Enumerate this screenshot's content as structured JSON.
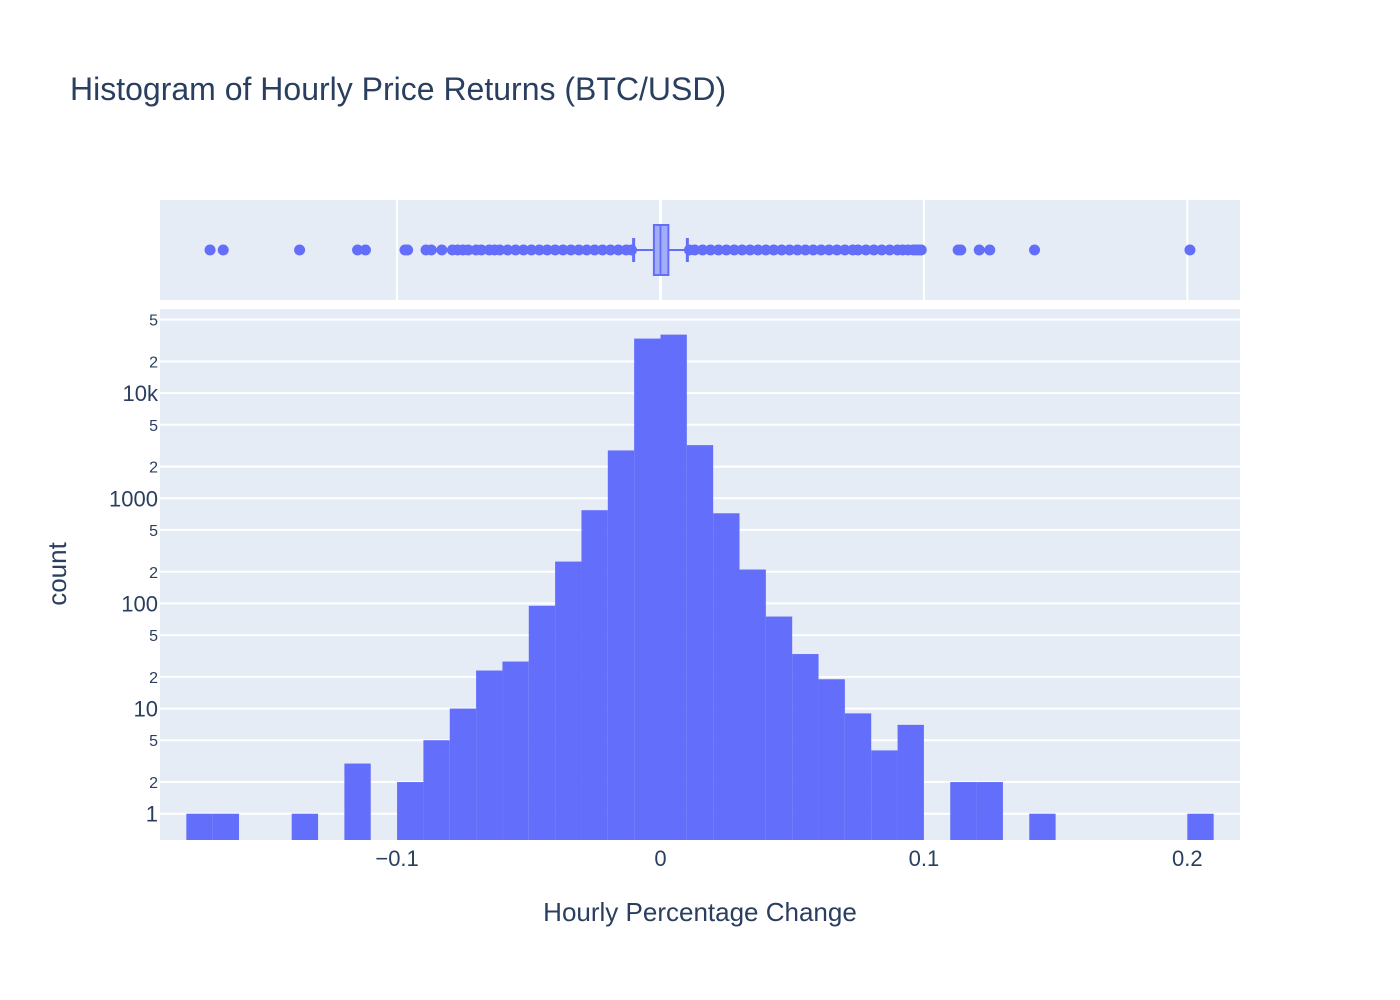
{
  "chart_data": {
    "type": "bar",
    "title": "Histogram of Hourly Price Returns (BTC/USD)",
    "xlabel": "Hourly Percentage Change",
    "ylabel": "count",
    "yscale": "log",
    "xlim": [
      -0.19,
      0.22
    ],
    "ylim_log10": [
      -0.25,
      4.8
    ],
    "bin_width": 0.01,
    "bins": [
      {
        "x0": -0.18,
        "count": 1
      },
      {
        "x0": -0.17,
        "count": 1
      },
      {
        "x0": -0.14,
        "count": 1
      },
      {
        "x0": -0.12,
        "count": 3
      },
      {
        "x0": -0.1,
        "count": 2
      },
      {
        "x0": -0.09,
        "count": 5
      },
      {
        "x0": -0.08,
        "count": 10
      },
      {
        "x0": -0.07,
        "count": 23
      },
      {
        "x0": -0.06,
        "count": 28
      },
      {
        "x0": -0.05,
        "count": 95
      },
      {
        "x0": -0.04,
        "count": 250
      },
      {
        "x0": -0.03,
        "count": 770
      },
      {
        "x0": -0.02,
        "count": 2850
      },
      {
        "x0": -0.01,
        "count": 33000
      },
      {
        "x0": 0.0,
        "count": 36000
      },
      {
        "x0": 0.01,
        "count": 3200
      },
      {
        "x0": 0.02,
        "count": 720
      },
      {
        "x0": 0.03,
        "count": 210
      },
      {
        "x0": 0.04,
        "count": 75
      },
      {
        "x0": 0.05,
        "count": 33
      },
      {
        "x0": 0.06,
        "count": 19
      },
      {
        "x0": 0.07,
        "count": 9
      },
      {
        "x0": 0.08,
        "count": 4
      },
      {
        "x0": 0.09,
        "count": 7
      },
      {
        "x0": 0.11,
        "count": 2
      },
      {
        "x0": 0.12,
        "count": 2
      },
      {
        "x0": 0.14,
        "count": 1
      },
      {
        "x0": 0.2,
        "count": 1
      }
    ],
    "x_ticks": [
      {
        "value": -0.1,
        "label": "−0.1"
      },
      {
        "value": 0,
        "label": "0"
      },
      {
        "value": 0.1,
        "label": "0.1"
      },
      {
        "value": 0.2,
        "label": "0.2"
      }
    ],
    "y_major_ticks": [
      {
        "value": 1,
        "label": "1"
      },
      {
        "value": 10,
        "label": "10"
      },
      {
        "value": 100,
        "label": "100"
      },
      {
        "value": 1000,
        "label": "1000"
      },
      {
        "value": 10000,
        "label": "10k"
      }
    ],
    "y_minor_ticks": [
      {
        "value": 2,
        "label": "2"
      },
      {
        "value": 5,
        "label": "5"
      },
      {
        "value": 20,
        "label": "2"
      },
      {
        "value": 50,
        "label": "5"
      },
      {
        "value": 200,
        "label": "2"
      },
      {
        "value": 500,
        "label": "5"
      },
      {
        "value": 2000,
        "label": "2"
      },
      {
        "value": 5000,
        "label": "5"
      },
      {
        "value": 20000,
        "label": "2"
      },
      {
        "value": 50000,
        "label": "5"
      }
    ],
    "box": {
      "q1": -0.0025,
      "median": 0.0,
      "q3": 0.003,
      "lower_fence": -0.0102,
      "upper_fence": 0.0102,
      "outliers": [
        -0.171,
        -0.166,
        -0.137,
        -0.115,
        -0.112,
        -0.097,
        -0.096,
        -0.089,
        -0.087,
        -0.083,
        -0.079,
        -0.077,
        -0.075,
        -0.073,
        -0.07,
        -0.068,
        -0.065,
        -0.063,
        -0.061,
        -0.058,
        -0.055,
        -0.052,
        -0.049,
        -0.046,
        -0.043,
        -0.04,
        -0.037,
        -0.034,
        -0.031,
        -0.028,
        -0.025,
        -0.022,
        -0.019,
        -0.016,
        -0.013,
        -0.011,
        0.011,
        0.013,
        0.016,
        0.019,
        0.022,
        0.025,
        0.028,
        0.031,
        0.034,
        0.037,
        0.04,
        0.043,
        0.046,
        0.049,
        0.052,
        0.055,
        0.058,
        0.061,
        0.064,
        0.067,
        0.07,
        0.073,
        0.075,
        0.078,
        0.081,
        0.084,
        0.087,
        0.09,
        0.092,
        0.094,
        0.096,
        0.097,
        0.098,
        0.099,
        0.113,
        0.114,
        0.121,
        0.125,
        0.142,
        0.201
      ]
    },
    "colors": {
      "bar": "#636efa",
      "plot_bg": "#e5ecf6",
      "grid": "#ffffff",
      "text": "#2a3f5f"
    }
  }
}
